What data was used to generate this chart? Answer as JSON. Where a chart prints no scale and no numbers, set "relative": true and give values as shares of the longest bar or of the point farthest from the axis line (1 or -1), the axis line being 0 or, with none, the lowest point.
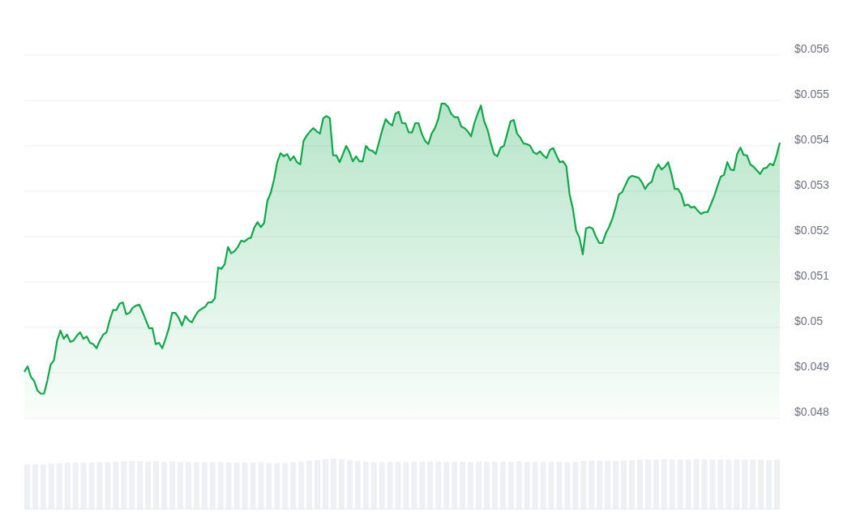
{
  "chart_data": [
    {
      "type": "area",
      "categories": [
        null,
        null,
        null,
        null,
        null,
        null,
        null,
        null,
        null,
        null,
        null,
        null,
        null,
        null,
        null,
        null,
        null,
        null,
        null,
        null,
        null,
        null,
        null,
        null,
        null,
        null,
        null,
        null,
        null,
        null,
        null,
        null,
        null,
        null,
        null,
        null,
        null,
        null,
        null,
        null,
        null,
        null,
        null,
        null,
        null,
        null,
        null,
        null,
        null,
        null,
        null,
        null,
        null,
        null,
        null,
        null,
        null,
        null,
        null,
        null,
        null,
        null,
        null,
        null,
        null,
        null,
        null,
        null,
        null,
        null,
        null,
        null,
        null,
        null,
        null,
        null,
        null,
        null,
        null,
        null,
        null,
        null,
        null,
        null,
        null,
        null,
        null,
        null,
        null,
        null,
        null,
        null,
        null,
        null,
        null,
        null,
        null,
        null,
        null,
        null,
        null,
        null,
        null,
        null,
        null,
        null,
        null,
        null,
        null,
        null,
        null,
        null,
        null,
        null,
        null,
        null,
        null,
        null,
        null,
        null,
        null,
        null,
        null,
        null,
        null,
        null,
        null,
        null,
        null,
        null,
        null,
        null,
        null,
        null,
        null,
        null,
        null,
        null,
        null,
        null,
        null,
        null,
        null,
        null,
        null,
        null,
        null,
        null,
        null,
        null,
        null,
        null,
        null,
        null,
        null,
        null,
        null,
        null,
        null,
        null,
        null,
        null,
        null,
        null,
        null,
        null,
        null,
        null,
        null,
        null,
        null,
        null,
        null,
        null,
        null,
        null,
        null,
        null,
        null,
        null,
        null,
        null,
        null,
        null,
        null,
        null,
        null,
        null,
        null,
        null,
        null,
        null,
        null,
        null,
        null,
        null,
        null,
        null,
        null,
        null,
        null,
        null,
        null,
        null,
        null,
        null,
        null,
        null,
        null,
        null,
        null,
        null,
        null,
        null,
        null,
        null,
        null,
        null,
        null,
        null,
        null,
        null,
        null,
        null,
        null,
        null,
        null,
        null,
        null,
        null,
        null
      ],
      "series": [
        {
          "color": "#0ea84a",
          "values": [
            0.04902,
            0.04914,
            0.04891,
            0.04882,
            0.04861,
            0.04854,
            0.04854,
            0.04882,
            0.04918,
            0.04927,
            0.04971,
            0.04993,
            0.04975,
            0.04984,
            0.04968,
            0.04971,
            0.04982,
            0.04989,
            0.04975,
            0.0498,
            0.04966,
            0.04963,
            0.04954,
            0.04971,
            0.04984,
            0.04989,
            0.05016,
            0.05038,
            0.05038,
            0.05052,
            0.05055,
            0.05029,
            0.05032,
            0.05043,
            0.05048,
            0.0505,
            0.05034,
            0.05016,
            0.04998,
            0.04998,
            0.04963,
            0.04966,
            0.04954,
            0.04975,
            0.04998,
            0.05032,
            0.05032,
            0.05021,
            0.05004,
            0.05025,
            0.05016,
            0.05011,
            0.05025,
            0.05036,
            0.05041,
            0.05045,
            0.05055,
            0.05055,
            0.05064,
            0.05132,
            0.05129,
            0.05139,
            0.05177,
            0.05163,
            0.05168,
            0.05177,
            0.05191,
            0.05189,
            0.05195,
            0.05198,
            0.0522,
            0.05232,
            0.05221,
            0.0523,
            0.05279,
            0.05296,
            0.05325,
            0.05364,
            0.05384,
            0.05377,
            0.05382,
            0.05368,
            0.05377,
            0.05364,
            0.05359,
            0.05411,
            0.05423,
            0.05432,
            0.05439,
            0.05432,
            0.05427,
            0.05461,
            0.05466,
            0.05461,
            0.05379,
            0.05379,
            0.05364,
            0.05382,
            0.054,
            0.05386,
            0.05366,
            0.05377,
            0.05366,
            0.05366,
            0.054,
            0.05391,
            0.05389,
            0.05382,
            0.05409,
            0.05436,
            0.05459,
            0.0545,
            0.05445,
            0.05471,
            0.05475,
            0.0545,
            0.0545,
            0.0543,
            0.05429,
            0.0545,
            0.0545,
            0.05427,
            0.05411,
            0.05404,
            0.05427,
            0.05439,
            0.05459,
            0.05493,
            0.05493,
            0.05486,
            0.0547,
            0.05463,
            0.05463,
            0.05443,
            0.05439,
            0.05432,
            0.05421,
            0.0545,
            0.05471,
            0.05489,
            0.05454,
            0.05436,
            0.05407,
            0.05382,
            0.05377,
            0.05396,
            0.054,
            0.05427,
            0.05454,
            0.05457,
            0.05427,
            0.05418,
            0.05405,
            0.05404,
            0.054,
            0.05386,
            0.05382,
            0.05388,
            0.05379,
            0.05373,
            0.05391,
            0.05395,
            0.05379,
            0.05364,
            0.05366,
            0.05355,
            0.05293,
            0.05261,
            0.05213,
            0.05198,
            0.05161,
            0.05218,
            0.05221,
            0.05218,
            0.052,
            0.05186,
            0.05186,
            0.05207,
            0.05221,
            0.05239,
            0.05264,
            0.05293,
            0.05298,
            0.05314,
            0.05329,
            0.05334,
            0.05332,
            0.0533,
            0.0532,
            0.05305,
            0.05316,
            0.05321,
            0.05346,
            0.05359,
            0.05348,
            0.05354,
            0.05364,
            0.05338,
            0.05305,
            0.05305,
            0.05293,
            0.05268,
            0.05271,
            0.05264,
            0.05266,
            0.05257,
            0.0525,
            0.05254,
            0.05254,
            0.05271,
            0.05289,
            0.05311,
            0.05332,
            0.05336,
            0.05364,
            0.05348,
            0.05346,
            0.05382,
            0.05396,
            0.0538,
            0.05379,
            0.05359,
            0.05354,
            0.05346,
            0.05338,
            0.0535,
            0.05352,
            0.05361,
            0.05357,
            0.05379,
            0.05407
          ]
        }
      ],
      "ylim": [
        0.048,
        0.056
      ],
      "yticks": [
        {
          "value": 0.048,
          "label": "$0.048"
        },
        {
          "value": 0.049,
          "label": "$0.049"
        },
        {
          "value": 0.05,
          "label": "$0.05"
        },
        {
          "value": 0.051,
          "label": "$0.051"
        },
        {
          "value": 0.052,
          "label": "$0.052"
        },
        {
          "value": 0.053,
          "label": "$0.053"
        },
        {
          "value": 0.054,
          "label": "$0.054"
        },
        {
          "value": 0.055,
          "label": "$0.055"
        },
        {
          "value": 0.056,
          "label": "$0.056"
        }
      ],
      "grid": "y",
      "line_style": "solid"
    },
    {
      "type": "bar",
      "relative": true,
      "color": "#eef0f4",
      "categories": [
        null,
        null,
        null,
        null,
        null,
        null,
        null,
        null,
        null,
        null,
        null,
        null,
        null,
        null,
        null,
        null,
        null,
        null,
        null,
        null,
        null,
        null,
        null,
        null,
        null,
        null,
        null,
        null,
        null,
        null,
        null,
        null,
        null,
        null,
        null,
        null,
        null,
        null,
        null,
        null,
        null,
        null,
        null,
        null,
        null,
        null,
        null,
        null,
        null,
        null,
        null,
        null,
        null,
        null,
        null,
        null,
        null,
        null,
        null,
        null,
        null,
        null,
        null,
        null,
        null,
        null,
        null,
        null,
        null,
        null,
        null,
        null,
        null,
        null,
        null,
        null,
        null,
        null,
        null,
        null,
        null,
        null,
        null,
        null,
        null,
        null,
        null,
        null,
        null,
        null,
        null,
        null,
        null,
        null
      ],
      "values": [
        0.89,
        0.89,
        0.89,
        0.9,
        0.91,
        0.92,
        0.92,
        0.92,
        0.92,
        0.93,
        0.93,
        0.94,
        0.95,
        0.95,
        0.95,
        0.94,
        0.95,
        0.94,
        0.94,
        0.93,
        0.93,
        0.93,
        0.93,
        0.93,
        0.93,
        0.92,
        0.92,
        0.92,
        0.92,
        0.93,
        0.91,
        0.91,
        0.91,
        0.93,
        0.94,
        0.96,
        0.97,
        0.99,
        1,
        0.99,
        0.97,
        0.95,
        0.94,
        0.93,
        0.93,
        0.94,
        0.94,
        0.93,
        0.94,
        0.94,
        0.94,
        0.94,
        0.94,
        0.94,
        0.94,
        0.93,
        0.94,
        0.94,
        0.94,
        0.94,
        0.94,
        0.95,
        0.94,
        0.94,
        0.94,
        0.94,
        0.94,
        0.93,
        0.94,
        0.95,
        0.96,
        0.96,
        0.96,
        0.95,
        0.96,
        0.97,
        0.98,
        0.98,
        0.98,
        0.99,
        0.98,
        0.98,
        0.98,
        0.99,
        0.98,
        0.98,
        0.98,
        0.98,
        0.98,
        0.98,
        0.98,
        0.98,
        0.97,
        0.98
      ]
    }
  ]
}
